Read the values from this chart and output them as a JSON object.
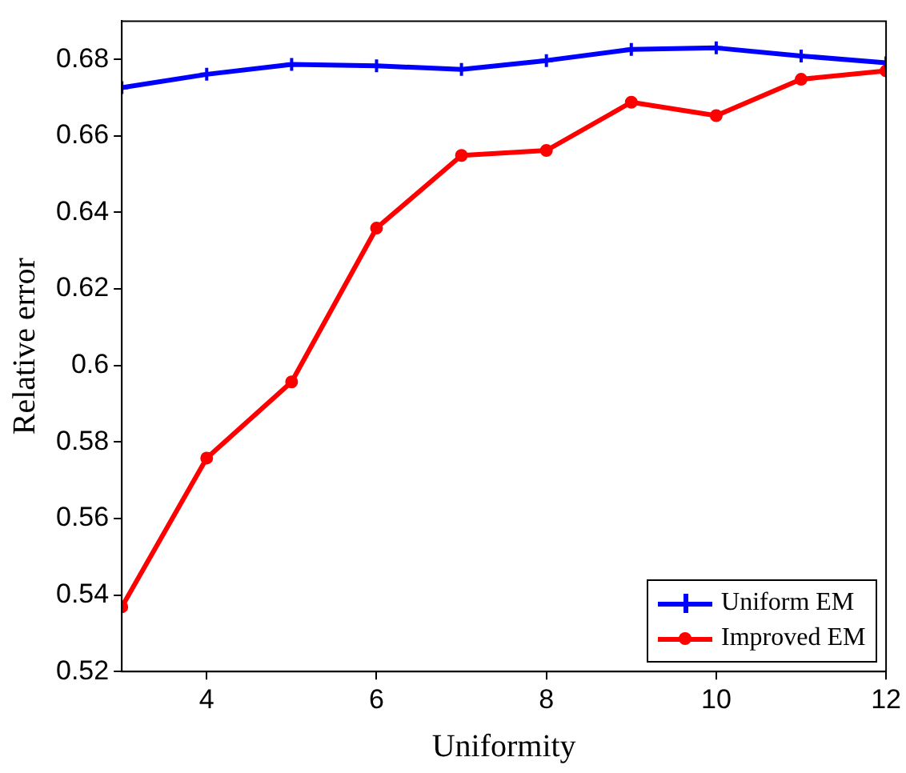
{
  "chart_data": {
    "type": "line",
    "xlabel": "Uniformity",
    "ylabel": "Relative error",
    "x": [
      3,
      4,
      5,
      6,
      7,
      8,
      9,
      10,
      11,
      12
    ],
    "series": [
      {
        "name": "Uniform EM",
        "color": "#0000ff",
        "marker": "cross",
        "values": [
          0.6726,
          0.6761,
          0.6787,
          0.6783,
          0.6774,
          0.6797,
          0.6826,
          0.683,
          0.6809,
          0.6791
        ]
      },
      {
        "name": "Improved EM",
        "color": "#ff0000",
        "marker": "circle",
        "values": [
          0.5369,
          0.5758,
          0.5957,
          0.6359,
          0.6549,
          0.6562,
          0.6688,
          0.6653,
          0.6748,
          0.677
        ]
      }
    ],
    "xlim": [
      3,
      12
    ],
    "xticks": [
      4,
      6,
      8,
      10,
      12
    ],
    "ylim": [
      0.52,
      0.69
    ],
    "yticks": [
      0.52,
      0.54,
      0.56,
      0.58,
      0.6,
      0.62,
      0.64,
      0.66,
      0.68
    ],
    "grid": false,
    "legend": "bottom right",
    "line_style": "solid"
  }
}
